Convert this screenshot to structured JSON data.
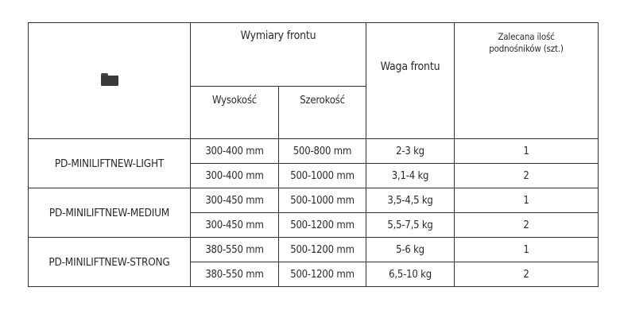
{
  "header": {
    "icon": "folder-icon",
    "dimensions": "Wymiary frontu",
    "height": "Wysokość",
    "width": "Szerokość",
    "weight": "Waga frontu",
    "count": "Zalecana ilość podnośników (szt.)"
  },
  "groups": [
    {
      "model": "PD-MINILIFTNEW-LIGHT",
      "rows": [
        {
          "height": "300-400 mm",
          "width": "500-800 mm",
          "weight": "2-3 kg",
          "count": "1"
        },
        {
          "height": "300-400 mm",
          "width": "500-1000 mm",
          "weight": "3,1-4 kg",
          "count": "2"
        }
      ]
    },
    {
      "model": "PD-MINILIFTNEW-MEDIUM",
      "rows": [
        {
          "height": "300-450 mm",
          "width": "500-1000 mm",
          "weight": "3,5-4,5 kg",
          "count": "1"
        },
        {
          "height": "300-450 mm",
          "width": "500-1200 mm",
          "weight": "5,5-7,5 kg",
          "count": "2"
        }
      ]
    },
    {
      "model": "PD-MINILIFTNEW-STRONG",
      "rows": [
        {
          "height": "380-550 mm",
          "width": "500-1200 mm",
          "weight": "5-6 kg",
          "count": "1"
        },
        {
          "height": "380-550 mm",
          "width": "500-1200 mm",
          "weight": "6,5-10 kg",
          "count": "2"
        }
      ]
    }
  ]
}
